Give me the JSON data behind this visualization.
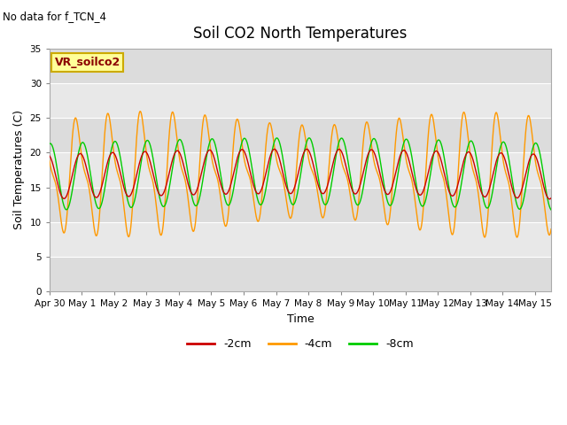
{
  "title": "Soil CO2 North Temperatures",
  "subtitle": "No data for f_TCN_4",
  "xlabel": "Time",
  "ylabel": "Soil Temperatures (C)",
  "ylim": [
    0,
    35
  ],
  "yticks": [
    0,
    5,
    10,
    15,
    20,
    25,
    30,
    35
  ],
  "total_days": 15.5,
  "colors": {
    "2cm": "#cc0000",
    "4cm": "#ff9900",
    "8cm": "#00cc00"
  },
  "legend_box_facecolor": "#ffff99",
  "legend_box_edgecolor": "#ccaa00",
  "legend_label": "VR_soilco2",
  "bg_color": "#e8e8e8",
  "band_colors": [
    "#dcdcdc",
    "#e8e8e8",
    "#dcdcdc",
    "#e8e8e8",
    "#dcdcdc",
    "#e8e8e8",
    "#dcdcdc"
  ],
  "x_tick_labels": [
    "Apr 30",
    "May 1",
    "May 2",
    "May 3",
    "May 4",
    "May 5",
    "May 6",
    "May 7",
    "May 8",
    "May 9",
    "May 10",
    "May 11",
    "May 12",
    "May 13",
    "May 14",
    "May 15"
  ],
  "figsize": [
    6.4,
    4.8
  ],
  "dpi": 100
}
